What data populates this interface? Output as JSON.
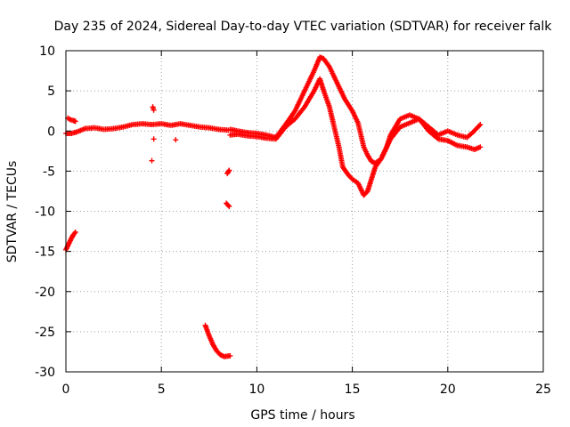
{
  "chart_data": {
    "type": "scatter",
    "title": "Day 235 of 2024, Sidereal Day-to-day VTEC variation (SDTVAR) for receiver falk",
    "xlabel": "GPS time / hours",
    "ylabel": "SDTVAR / TECUs",
    "xlim": [
      0,
      25
    ],
    "ylim": [
      -30,
      10
    ],
    "x_ticks": [
      0,
      5,
      10,
      15,
      20,
      25
    ],
    "y_ticks": [
      10,
      5,
      0,
      -5,
      -10,
      -15,
      -20,
      -25,
      -30
    ],
    "grid": true,
    "marker": "+",
    "series": [
      {
        "name": "SDTVAR",
        "color": "#ff0000",
        "segments": [
          [
            [
              0.0,
              -0.3
            ],
            [
              0.3,
              -0.3
            ],
            [
              0.6,
              -0.1
            ],
            [
              1.0,
              0.3
            ],
            [
              1.5,
              0.4
            ],
            [
              2.0,
              0.2
            ],
            [
              2.5,
              0.3
            ],
            [
              3.0,
              0.5
            ],
            [
              3.5,
              0.8
            ],
            [
              4.0,
              0.9
            ],
            [
              4.5,
              0.8
            ],
            [
              5.0,
              0.9
            ],
            [
              5.5,
              0.7
            ],
            [
              6.0,
              0.9
            ],
            [
              6.5,
              0.7
            ],
            [
              7.0,
              0.5
            ],
            [
              7.5,
              0.4
            ],
            [
              8.0,
              0.2
            ],
            [
              8.5,
              0.1
            ]
          ],
          [
            [
              0.1,
              1.6
            ],
            [
              0.25,
              1.4
            ],
            [
              0.4,
              1.3
            ],
            [
              0.5,
              1.2
            ]
          ],
          [
            [
              0.0,
              -14.8
            ],
            [
              0.1,
              -14.3
            ],
            [
              0.2,
              -13.8
            ],
            [
              0.3,
              -13.3
            ],
            [
              0.4,
              -12.9
            ],
            [
              0.5,
              -12.6
            ]
          ],
          [
            [
              4.55,
              3.0
            ],
            [
              4.6,
              2.6
            ]
          ],
          [
            [
              4.5,
              -3.7
            ]
          ],
          [
            [
              4.6,
              -1.0
            ]
          ],
          [
            [
              5.75,
              -1.1
            ]
          ],
          [
            [
              7.3,
              -24.2
            ],
            [
              7.5,
              -25.5
            ],
            [
              7.7,
              -26.6
            ],
            [
              7.9,
              -27.4
            ],
            [
              8.1,
              -27.9
            ],
            [
              8.3,
              -28.1
            ],
            [
              8.6,
              -28.0
            ]
          ],
          [
            [
              8.45,
              -5.3
            ],
            [
              8.55,
              -4.9
            ]
          ],
          [
            [
              8.4,
              -9.0
            ],
            [
              8.55,
              -9.4
            ]
          ],
          [
            [
              8.6,
              -0.5
            ],
            [
              9.0,
              -0.4
            ],
            [
              9.5,
              -0.6
            ],
            [
              10.0,
              -0.7
            ],
            [
              10.5,
              -0.9
            ],
            [
              11.0,
              -1.0
            ],
            [
              11.5,
              0.5
            ],
            [
              12.0,
              1.5
            ],
            [
              12.5,
              3.0
            ],
            [
              13.0,
              5.0
            ],
            [
              13.3,
              6.5
            ],
            [
              13.5,
              5.0
            ],
            [
              13.8,
              3.0
            ],
            [
              14.0,
              1.0
            ],
            [
              14.3,
              -2.0
            ],
            [
              14.5,
              -4.5
            ],
            [
              14.8,
              -5.5
            ],
            [
              15.0,
              -6.0
            ],
            [
              15.3,
              -6.5
            ],
            [
              15.6,
              -8.0
            ],
            [
              15.8,
              -7.5
            ],
            [
              16.0,
              -6.0
            ],
            [
              16.2,
              -4.5
            ],
            [
              16.5,
              -3.5
            ],
            [
              17.0,
              -1.0
            ],
            [
              17.5,
              0.5
            ],
            [
              18.0,
              1.0
            ],
            [
              18.5,
              1.5
            ],
            [
              19.0,
              0.0
            ],
            [
              19.5,
              -1.0
            ],
            [
              20.0,
              -1.2
            ],
            [
              20.5,
              -1.8
            ],
            [
              21.0,
              -2.0
            ],
            [
              21.4,
              -2.3
            ],
            [
              21.7,
              -2.0
            ]
          ],
          [
            [
              8.6,
              0.2
            ],
            [
              9.0,
              0.0
            ],
            [
              9.5,
              -0.2
            ],
            [
              10.0,
              -0.3
            ],
            [
              10.5,
              -0.5
            ],
            [
              11.0,
              -0.8
            ],
            [
              11.5,
              0.8
            ],
            [
              12.0,
              2.5
            ],
            [
              12.5,
              5.0
            ],
            [
              13.0,
              7.5
            ],
            [
              13.3,
              9.2
            ],
            [
              13.5,
              9.0
            ],
            [
              13.8,
              8.0
            ],
            [
              14.0,
              7.0
            ],
            [
              14.3,
              5.5
            ],
            [
              14.6,
              4.0
            ],
            [
              15.0,
              2.5
            ],
            [
              15.3,
              1.0
            ],
            [
              15.6,
              -2.0
            ],
            [
              15.8,
              -3.0
            ],
            [
              16.0,
              -3.8
            ],
            [
              16.2,
              -4.0
            ],
            [
              16.5,
              -3.5
            ],
            [
              16.8,
              -2.0
            ],
            [
              17.0,
              -0.5
            ],
            [
              17.5,
              1.5
            ],
            [
              18.0,
              2.0
            ],
            [
              18.5,
              1.5
            ],
            [
              19.0,
              0.5
            ],
            [
              19.5,
              -0.5
            ],
            [
              20.0,
              0.0
            ],
            [
              20.5,
              -0.5
            ],
            [
              21.0,
              -0.8
            ],
            [
              21.3,
              -0.2
            ],
            [
              21.7,
              0.8
            ]
          ]
        ]
      }
    ]
  }
}
